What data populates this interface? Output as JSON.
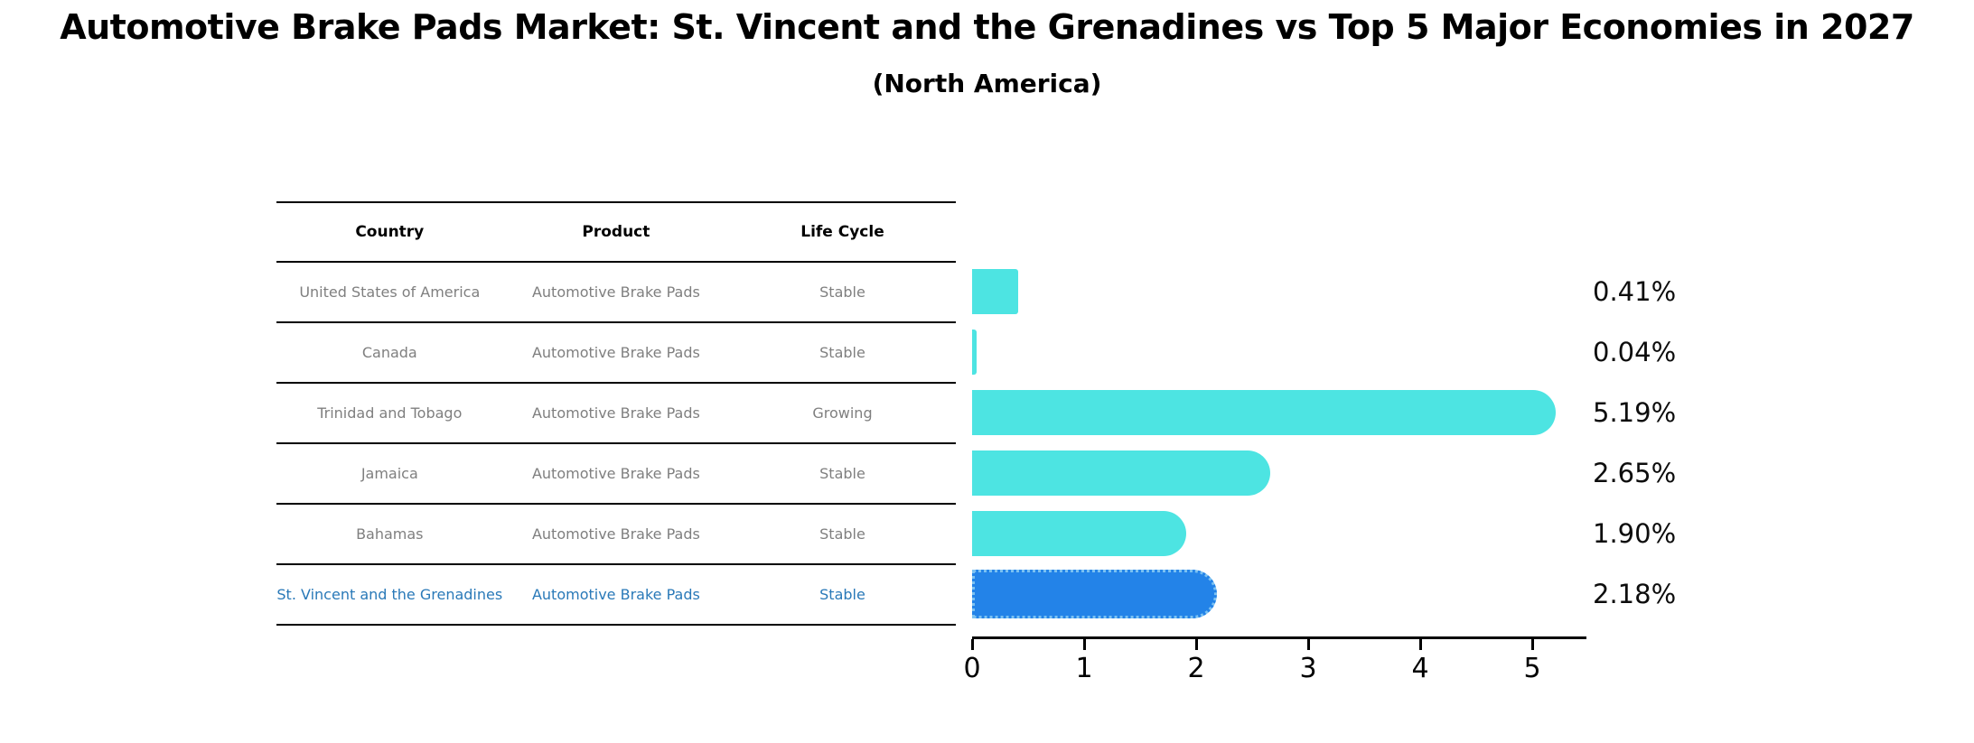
{
  "title": "Automotive Brake Pads Market: St. Vincent and the Grenadines vs Top 5 Major Economies in 2027",
  "subtitle": "(North America)",
  "table": {
    "headers": {
      "country": "Country",
      "product": "Product",
      "life_cycle": "Life Cycle"
    },
    "rows": [
      {
        "country": "United States of America",
        "product": "Automotive Brake Pads",
        "life_cycle": "Stable"
      },
      {
        "country": "Canada",
        "product": "Automotive Brake Pads",
        "life_cycle": "Stable"
      },
      {
        "country": "Trinidad and Tobago",
        "product": "Automotive Brake Pads",
        "life_cycle": "Growing"
      },
      {
        "country": "Jamaica",
        "product": "Automotive Brake Pads",
        "life_cycle": "Stable"
      },
      {
        "country": "Bahamas",
        "product": "Automotive Brake Pads",
        "life_cycle": "Stable"
      },
      {
        "country": "St. Vincent and the Grenadines",
        "product": "Automotive Brake Pads",
        "life_cycle": "Stable"
      }
    ]
  },
  "chart_data": {
    "type": "bar",
    "orientation": "horizontal",
    "title": "Automotive Brake Pads Market: St. Vincent and the Grenadines vs Top 5 Major Economies in 2027",
    "subtitle": "(North America)",
    "categories": [
      "United States of America",
      "Canada",
      "Trinidad and Tobago",
      "Jamaica",
      "Bahamas",
      "St. Vincent and the Grenadines"
    ],
    "values": [
      0.41,
      0.04,
      5.19,
      2.65,
      1.9,
      2.18
    ],
    "value_labels": [
      "0.41%",
      "0.04%",
      "5.19%",
      "2.65%",
      "1.90%",
      "2.18%"
    ],
    "x_ticks": [
      0,
      1,
      2,
      3,
      4,
      5
    ],
    "xlim": [
      0,
      5.45
    ],
    "grid": false,
    "legend": false,
    "bar_color": "#4de4e2",
    "highlight_bar_color": "#2383e8",
    "highlight_text_color": "#2979b8",
    "highlight_index": 5
  }
}
